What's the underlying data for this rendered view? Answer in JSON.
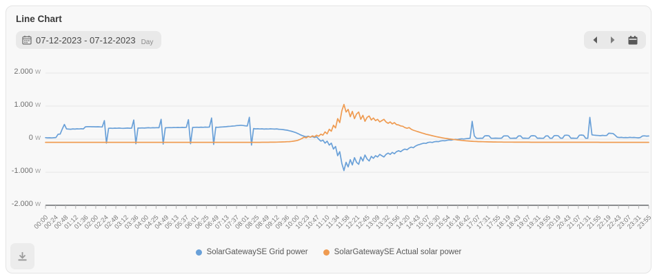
{
  "header": {
    "title": "Line Chart"
  },
  "toolbar": {
    "date_range": "07-12-2023 - 07-12-2023",
    "period_label": "Day"
  },
  "colors": {
    "grid_power": "#69a0d8",
    "solar_power": "#ef9b51",
    "axis_line": "#66686b",
    "gridline": "#e6e6e6"
  },
  "chart_data": {
    "type": "line",
    "title": "Line Chart",
    "unit": "W",
    "interval_minutes": 5,
    "start_time": "00:00",
    "grid": "horizontal-only",
    "legend_position": "bottom",
    "y_axis": {
      "min": -2000,
      "max": 2000,
      "unit": "W",
      "tick_labels": [
        "2.000",
        "1.000",
        "0",
        "-1.000",
        "-2.000"
      ]
    },
    "x_tick_labels": [
      "00:00",
      "00:24",
      "00:48",
      "01:12",
      "01:36",
      "02:00",
      "02:24",
      "02:48",
      "03:12",
      "03:36",
      "04:00",
      "04:25",
      "04:49",
      "05:13",
      "05:37",
      "06:01",
      "06:25",
      "06:49",
      "07:13",
      "07:37",
      "08:01",
      "08:25",
      "08:49",
      "09:12",
      "09:36",
      "10:00",
      "10:23",
      "10:47",
      "11:10",
      "11:34",
      "11:58",
      "12:21",
      "12:45",
      "13:09",
      "13:32",
      "13:56",
      "14:20",
      "14:43",
      "15:07",
      "15:30",
      "15:54",
      "16:18",
      "16:42",
      "17:07",
      "17:31",
      "17:55",
      "18:19",
      "18:43",
      "19:07",
      "19:31",
      "19:55",
      "20:19",
      "20:43",
      "21:07",
      "21:31",
      "21:55",
      "22:19",
      "22:43",
      "23:07",
      "23:31",
      "23:55"
    ],
    "series": [
      {
        "name": "SolarGatewaySE Grid power",
        "color": "#69a0d8",
        "values": [
          45,
          40,
          42,
          38,
          44,
          50,
          150,
          155,
          310,
          445,
          310,
          305,
          300,
          310,
          305,
          312,
          308,
          315,
          310,
          372,
          378,
          380,
          376,
          374,
          372,
          375,
          370,
          368,
          560,
          -120,
          330,
          332,
          328,
          334,
          330,
          336,
          330,
          328,
          332,
          335,
          331,
          334,
          580,
          -140,
          338,
          335,
          340,
          336,
          342,
          345,
          340,
          346,
          343,
          348,
          345,
          600,
          -150,
          344,
          348,
          350,
          347,
          352,
          349,
          354,
          351,
          356,
          353,
          358,
          590,
          -140,
          355,
          358,
          360,
          356,
          362,
          358,
          364,
          360,
          366,
          640,
          -160,
          362,
          358,
          364,
          368,
          372,
          378,
          385,
          390,
          396,
          400,
          410,
          415,
          420,
          412,
          405,
          398,
          660,
          -180,
          320,
          310,
          315,
          308,
          312,
          305,
          310,
          306,
          312,
          308,
          304,
          310,
          300,
          295,
          290,
          280,
          270,
          255,
          240,
          220,
          200,
          170,
          140,
          110,
          90,
          70,
          90,
          60,
          80,
          50,
          70,
          0,
          -60,
          -30,
          -120,
          -60,
          -180,
          -120,
          -300,
          -220,
          -500,
          -380,
          -740,
          -950,
          -700,
          -840,
          -620,
          -780,
          -560,
          -700,
          -760,
          -540,
          -660,
          -480,
          -600,
          -660,
          -520,
          -580,
          -500,
          -540,
          -460,
          -500,
          -540,
          -460,
          -420,
          -460,
          -400,
          -440,
          -380,
          -350,
          -380,
          -330,
          -300,
          -320,
          -270,
          -240,
          -260,
          -210,
          -180,
          -160,
          -140,
          -120,
          -130,
          -100,
          -90,
          -100,
          -80,
          -70,
          -75,
          -55,
          -45,
          -50,
          -35,
          -25,
          -30,
          -15,
          -5,
          -10,
          5,
          10,
          5,
          15,
          20,
          30,
          540,
          100,
          30,
          25,
          30,
          28,
          100,
          105,
          100,
          30,
          28,
          32,
          30,
          28,
          32,
          95,
          100,
          98,
          30,
          28,
          32,
          30,
          95,
          100,
          30,
          32,
          28,
          30,
          100,
          105,
          98,
          30,
          32,
          28,
          30,
          95,
          100,
          30,
          28,
          105,
          110,
          100,
          32,
          30,
          115,
          120,
          110,
          30,
          32,
          28,
          30,
          118,
          125,
          115,
          30,
          28,
          660,
          130,
          120,
          115,
          110,
          105,
          115,
          108,
          112,
          180,
          175,
          170,
          120,
          60,
          50,
          55,
          45,
          50,
          45,
          55,
          48,
          52,
          45,
          40,
          50,
          95,
          100,
          92,
          95
        ]
      },
      {
        "name": "SolarGatewaySE Actual solar power",
        "color": "#ef9b51",
        "values": [
          -95,
          -95,
          -95,
          -95,
          -95,
          -95,
          -95,
          -95,
          -95,
          -95,
          -95,
          -95,
          -95,
          -95,
          -95,
          -95,
          -95,
          -95,
          -95,
          -95,
          -95,
          -95,
          -95,
          -95,
          -95,
          -95,
          -95,
          -95,
          -95,
          -95,
          -95,
          -95,
          -95,
          -95,
          -95,
          -95,
          -95,
          -95,
          -95,
          -95,
          -95,
          -95,
          -95,
          -95,
          -95,
          -95,
          -95,
          -95,
          -95,
          -95,
          -95,
          -95,
          -95,
          -95,
          -95,
          -95,
          -95,
          -95,
          -95,
          -95,
          -95,
          -95,
          -95,
          -95,
          -95,
          -95,
          -95,
          -95,
          -95,
          -95,
          -95,
          -95,
          -95,
          -95,
          -95,
          -95,
          -95,
          -95,
          -95,
          -95,
          -95,
          -95,
          -95,
          -95,
          -95,
          -95,
          -95,
          -95,
          -95,
          -95,
          -95,
          -95,
          -95,
          -95,
          -95,
          -95,
          -95,
          -95,
          -95,
          -95,
          -95,
          -95,
          -95,
          -94,
          -94,
          -93,
          -93,
          -92,
          -92,
          -91,
          -90,
          -88,
          -86,
          -84,
          -81,
          -78,
          -74,
          -68,
          -60,
          -50,
          -35,
          -10,
          20,
          60,
          40,
          80,
          60,
          100,
          70,
          120,
          90,
          150,
          120,
          220,
          160,
          300,
          240,
          420,
          340,
          620,
          500,
          860,
          1050,
          820,
          900,
          680,
          840,
          620,
          760,
          820,
          600,
          720,
          540,
          660,
          700,
          580,
          640,
          560,
          600,
          520,
          560,
          600,
          520,
          480,
          520,
          460,
          500,
          440,
          430,
          400,
          390,
          350,
          330,
          350,
          300,
          270,
          250,
          230,
          210,
          190,
          170,
          150,
          135,
          120,
          105,
          90,
          75,
          62,
          50,
          38,
          28,
          18,
          8,
          0,
          -8,
          -15,
          -22,
          -30,
          -38,
          -44,
          -50,
          -55,
          -60,
          -64,
          -68,
          -71,
          -74,
          -76,
          -78,
          -80,
          -82,
          -83,
          -84,
          -85,
          -86,
          -87,
          -88,
          -88,
          -89,
          -89,
          -90,
          -90,
          -90,
          -91,
          -91,
          -91,
          -92,
          -92,
          -92,
          -92,
          -92,
          -93,
          -93,
          -93,
          -93,
          -93,
          -93,
          -93,
          -93,
          -93,
          -93,
          -93,
          -93,
          -94,
          -94,
          -94,
          -94,
          -94,
          -94,
          -94,
          -94,
          -94,
          -94,
          -94,
          -94,
          -94,
          -94,
          -94,
          -94,
          -94,
          -94,
          -94,
          -94,
          -94,
          -95,
          -95,
          -95,
          -95,
          -95,
          -95,
          -95,
          -95,
          -95,
          -95,
          -95,
          -95,
          -95,
          -95,
          -95,
          -95,
          -95,
          -95,
          -95,
          -95,
          -95,
          -95,
          -95,
          -95
        ]
      }
    ]
  }
}
